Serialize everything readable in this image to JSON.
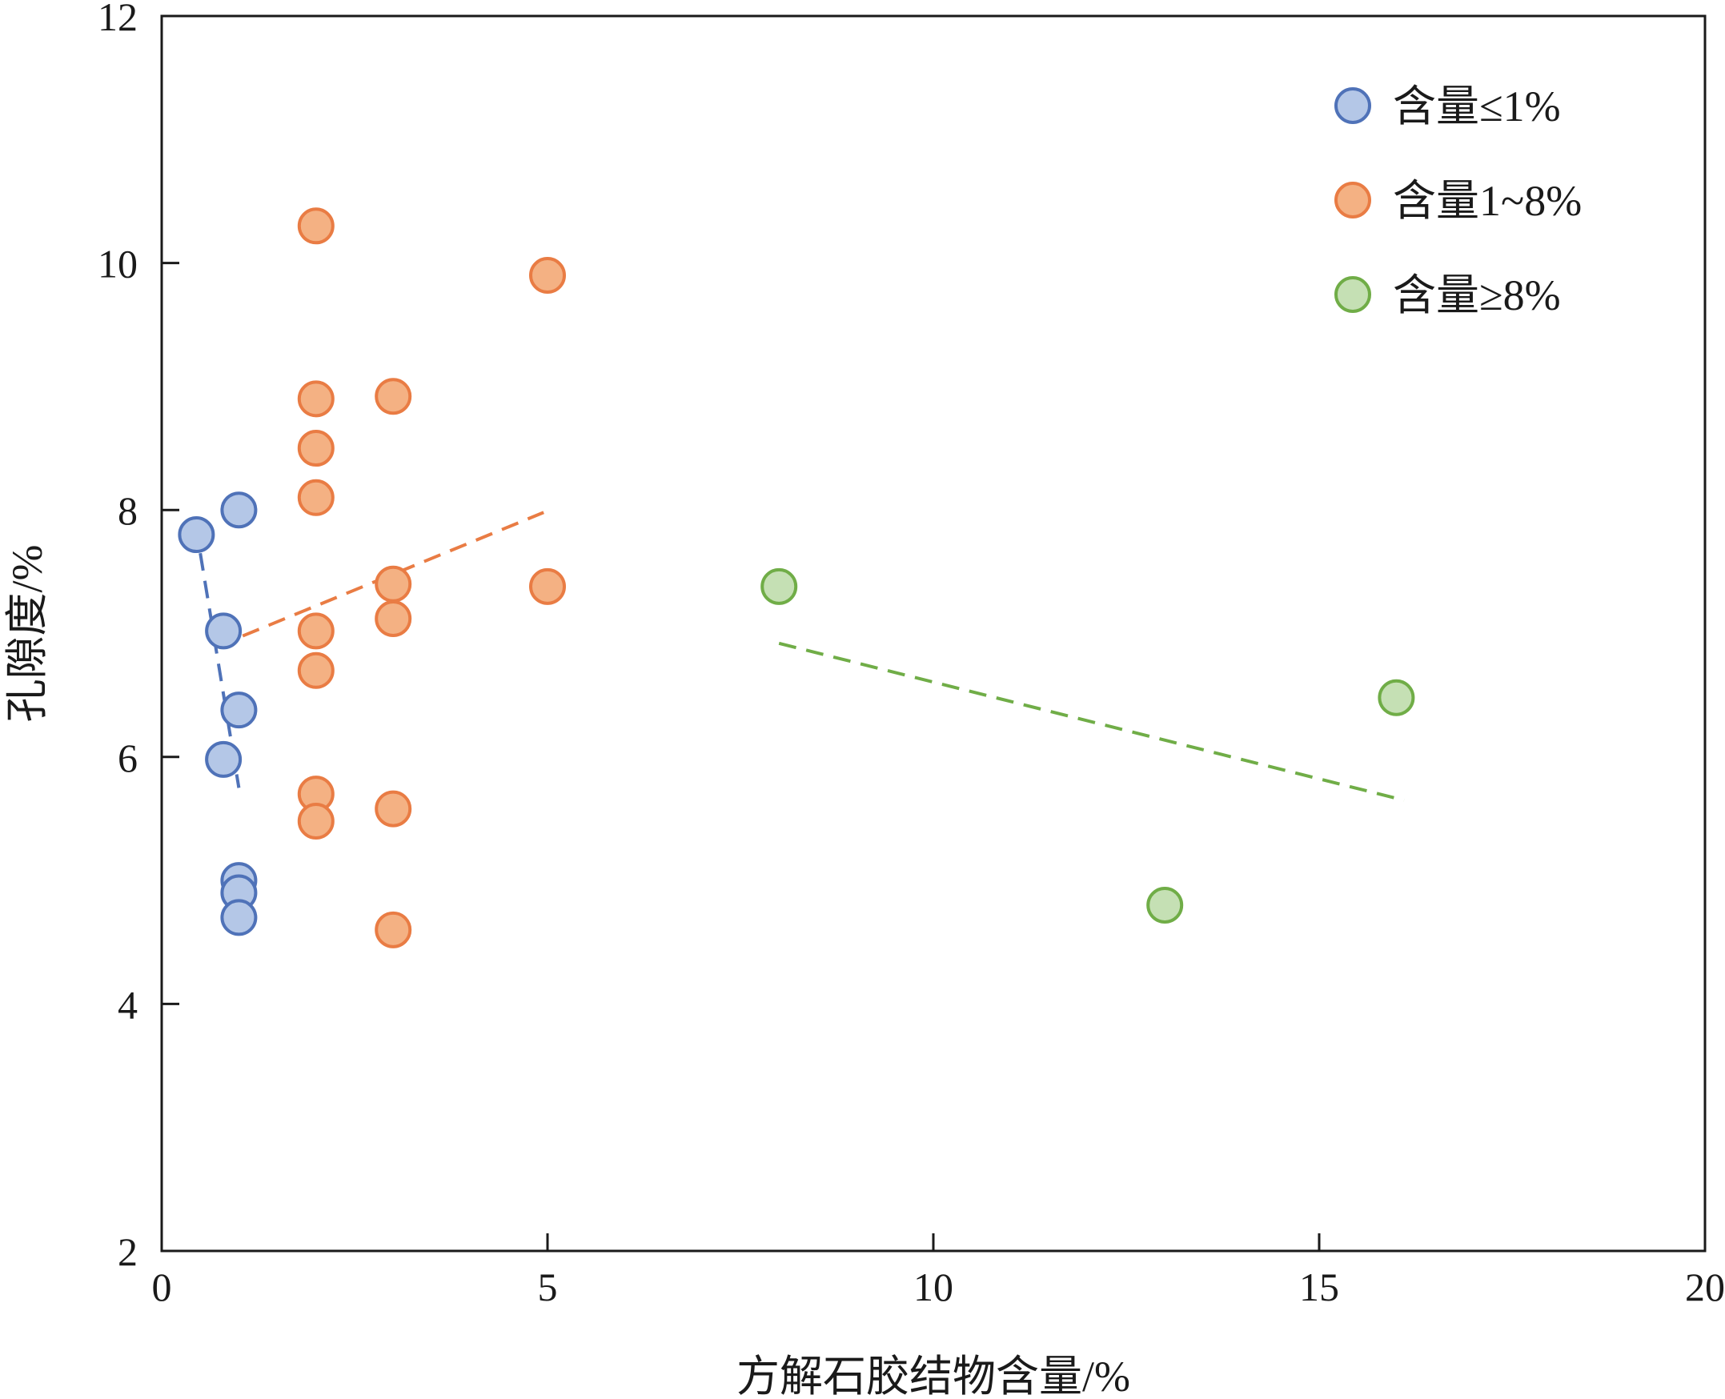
{
  "chart_data": {
    "type": "scatter",
    "title": "",
    "xlabel": "方解石胶结物含量/%",
    "ylabel": "孔隙度/%",
    "xlim": [
      0,
      20
    ],
    "ylim": [
      2,
      12
    ],
    "xticks": [
      0,
      5,
      10,
      15,
      20
    ],
    "yticks": [
      2,
      4,
      6,
      8,
      10,
      12
    ],
    "grid": false,
    "legend_position": "top-right",
    "series": [
      {
        "name": "含量≤1%",
        "color": "#b4c7e7",
        "edge_color": "#4f72b8",
        "trend_color": "#4f72b8",
        "points": [
          {
            "x": 0.45,
            "y": 7.8
          },
          {
            "x": 1.0,
            "y": 8.0
          },
          {
            "x": 0.8,
            "y": 7.02
          },
          {
            "x": 1.0,
            "y": 6.38
          },
          {
            "x": 0.8,
            "y": 5.98
          },
          {
            "x": 1.0,
            "y": 5.0
          },
          {
            "x": 1.0,
            "y": 4.9
          },
          {
            "x": 1.0,
            "y": 4.7
          }
        ],
        "trend": [
          {
            "x": 0.5,
            "y": 7.65
          },
          {
            "x": 1.0,
            "y": 5.75
          }
        ]
      },
      {
        "name": "含量1~8%",
        "color": "#f4b183",
        "edge_color": "#e97c44",
        "trend_color": "#e97c44",
        "points": [
          {
            "x": 2.0,
            "y": 10.3
          },
          {
            "x": 5.0,
            "y": 9.9
          },
          {
            "x": 2.0,
            "y": 8.9
          },
          {
            "x": 3.0,
            "y": 8.92
          },
          {
            "x": 2.0,
            "y": 8.5
          },
          {
            "x": 2.0,
            "y": 8.1
          },
          {
            "x": 3.0,
            "y": 7.4
          },
          {
            "x": 5.0,
            "y": 7.38
          },
          {
            "x": 3.0,
            "y": 7.12
          },
          {
            "x": 2.0,
            "y": 7.02
          },
          {
            "x": 2.0,
            "y": 6.7
          },
          {
            "x": 2.0,
            "y": 5.7
          },
          {
            "x": 2.0,
            "y": 5.48
          },
          {
            "x": 3.0,
            "y": 5.58
          },
          {
            "x": 3.0,
            "y": 4.6
          }
        ],
        "trend": [
          {
            "x": 1.05,
            "y": 6.98
          },
          {
            "x": 4.95,
            "y": 7.98
          }
        ]
      },
      {
        "name": "含量≥8%",
        "color": "#c5e0b4",
        "edge_color": "#70ad47",
        "trend_color": "#70ad47",
        "points": [
          {
            "x": 8.0,
            "y": 7.38
          },
          {
            "x": 16.0,
            "y": 6.48
          },
          {
            "x": 13.0,
            "y": 4.8
          }
        ],
        "trend": [
          {
            "x": 8.0,
            "y": 6.92
          },
          {
            "x": 16.1,
            "y": 5.65
          }
        ]
      }
    ]
  }
}
